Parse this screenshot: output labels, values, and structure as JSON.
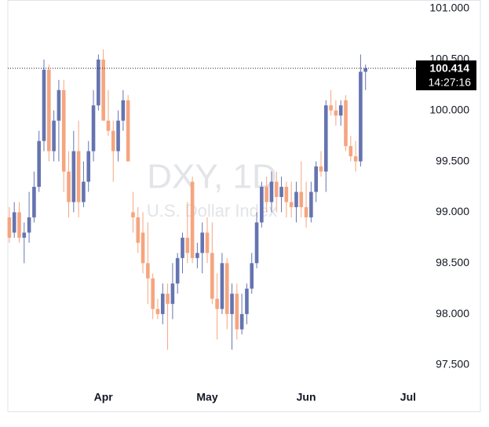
{
  "chart_data": {
    "type": "candlestick",
    "watermark": "DXY, 1D",
    "subtitle": "U.S. Dollar Index",
    "up_color": "#6574b0",
    "down_color": "#f5a57f",
    "open": [
      98.95,
      98.8,
      99.0,
      98.75,
      98.8,
      98.95,
      99.25,
      99.7,
      100.4,
      99.6,
      99.9,
      100.2,
      99.4,
      99.1,
      99.6,
      99.1,
      99.3,
      99.6,
      100.05,
      100.5,
      99.9,
      99.8,
      99.6,
      99.9,
      100.1,
      99.0,
      98.95,
      98.8,
      98.5,
      98.35,
      98.05,
      98.0,
      98.2,
      98.1,
      98.3,
      98.55,
      98.75,
      99.3,
      98.55,
      98.6,
      98.8,
      98.6,
      98.15,
      98.05,
      98.5,
      98.0,
      98.2,
      97.85,
      98.0,
      98.25,
      98.5,
      98.9,
      99.25,
      99.1,
      99.3,
      99.15,
      99.25,
      99.1,
      99.05,
      99.2,
      99.05,
      98.95,
      99.2,
      99.45,
      99.4,
      100.05,
      100.0,
      99.95,
      100.1,
      99.65,
      99.55,
      99.5,
      100.38
    ],
    "high": [
      99.05,
      99.1,
      99.1,
      98.9,
      99.2,
      99.4,
      99.8,
      100.5,
      100.45,
      100.0,
      100.3,
      100.3,
      99.6,
      99.8,
      99.9,
      99.5,
      99.7,
      100.2,
      100.55,
      100.6,
      100.2,
      99.9,
      100.0,
      100.2,
      100.15,
      99.2,
      99.05,
      99.0,
      98.9,
      98.4,
      98.15,
      98.3,
      98.3,
      98.5,
      98.6,
      98.8,
      99.1,
      99.35,
      98.7,
      98.9,
      98.95,
      98.9,
      98.4,
      98.6,
      98.55,
      98.3,
      98.3,
      98.2,
      98.3,
      98.6,
      99.0,
      99.3,
      99.35,
      99.4,
      99.4,
      99.35,
      99.3,
      99.3,
      99.3,
      99.5,
      99.3,
      99.3,
      99.5,
      99.6,
      100.1,
      100.2,
      100.1,
      100.1,
      100.15,
      99.75,
      99.7,
      100.55,
      100.45
    ],
    "low": [
      98.7,
      98.75,
      98.7,
      98.5,
      98.7,
      98.9,
      99.2,
      99.6,
      99.5,
      99.5,
      99.5,
      99.2,
      98.95,
      99.0,
      98.95,
      99.05,
      99.2,
      99.5,
      100.0,
      99.9,
      99.75,
      99.3,
      99.5,
      99.8,
      99.5,
      98.8,
      98.6,
      98.4,
      98.1,
      97.95,
      97.95,
      97.9,
      97.65,
      97.95,
      98.2,
      98.4,
      98.5,
      98.5,
      98.45,
      98.4,
      98.5,
      98.1,
      97.75,
      98.0,
      97.85,
      97.65,
      97.75,
      97.8,
      97.9,
      98.2,
      98.45,
      98.85,
      99.0,
      99.0,
      99.0,
      99.0,
      98.95,
      98.95,
      98.9,
      98.95,
      98.85,
      98.9,
      99.1,
      99.35,
      99.2,
      99.95,
      99.85,
      99.85,
      99.6,
      99.5,
      99.4,
      99.45,
      100.2
    ],
    "close": [
      98.75,
      99.0,
      98.75,
      98.8,
      98.95,
      99.25,
      99.7,
      100.4,
      99.6,
      99.9,
      100.2,
      99.4,
      99.1,
      99.6,
      99.1,
      99.3,
      99.6,
      100.05,
      100.5,
      99.9,
      99.8,
      99.6,
      99.9,
      100.1,
      99.5,
      98.95,
      98.7,
      98.5,
      98.35,
      98.05,
      98.0,
      98.2,
      98.1,
      98.3,
      98.55,
      98.75,
      98.6,
      98.55,
      98.6,
      98.8,
      98.6,
      98.15,
      98.05,
      98.5,
      98.0,
      98.2,
      97.85,
      98.0,
      98.25,
      98.5,
      98.9,
      99.25,
      99.1,
      99.3,
      99.15,
      99.25,
      99.1,
      99.05,
      99.2,
      99.05,
      98.95,
      99.2,
      99.45,
      99.4,
      100.05,
      100.0,
      99.95,
      100.05,
      99.65,
      99.55,
      99.5,
      100.38,
      100.414
    ],
    "xlim": [
      -0.3,
      82.2
    ],
    "xticks": [
      {
        "value": 19,
        "label": "Apr"
      },
      {
        "value": 40,
        "label": "May"
      },
      {
        "value": 60,
        "label": "Jun"
      },
      {
        "value": 80.6,
        "label": "Jul"
      }
    ],
    "ylim": [
      97.307,
      101.085
    ],
    "yticks": [
      {
        "value": 97.5,
        "label": "97.500"
      },
      {
        "value": 98,
        "label": "98.000"
      },
      {
        "value": 98.5,
        "label": "98.500"
      },
      {
        "value": 99,
        "label": "99.000"
      },
      {
        "value": 99.5,
        "label": "99.500"
      },
      {
        "value": 100,
        "label": "100.000"
      },
      {
        "value": 100.5,
        "label": "100.500"
      },
      {
        "value": 101,
        "label": "101.000"
      }
    ],
    "last_price": 100.414,
    "last_time": "14:27:16"
  }
}
